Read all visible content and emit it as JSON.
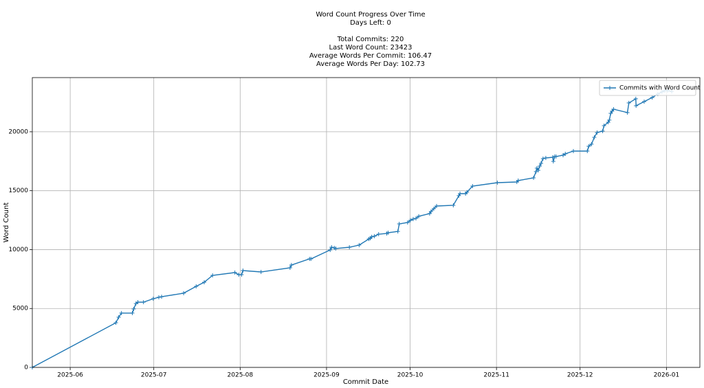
{
  "chart_data": {
    "type": "line",
    "title": [
      "Word Count Progress Over Time",
      "Days Left: 0",
      "Total Commits: 220",
      "Last Word Count: 23423",
      "Average Words Per Commit: 106.47",
      "Average Words Per Day: 102.73"
    ],
    "x_label": "Commit Date",
    "y_label": "Word Count",
    "xlim": [
      138.4,
      378
    ],
    "xticks": [
      {
        "value": 152,
        "label": "2025-06"
      },
      {
        "value": 182,
        "label": "2025-07"
      },
      {
        "value": 213,
        "label": "2025-08"
      },
      {
        "value": 244,
        "label": "2025-09"
      },
      {
        "value": 274,
        "label": "2025-10"
      },
      {
        "value": 305,
        "label": "2025-11"
      },
      {
        "value": 335,
        "label": "2025-12"
      },
      {
        "value": 366,
        "label": "2026-01"
      }
    ],
    "ylim": [
      0,
      24600
    ],
    "yticks": [
      0,
      5000,
      10000,
      15000,
      20000
    ],
    "grid": true,
    "legend": "upper right",
    "series": [
      {
        "name": "Commits with Word Count",
        "color": "#1f77b4",
        "x": [
          138.4,
          168.4,
          169.4,
          170.4,
          174.3,
          174.8,
          175.6,
          176.3,
          178.3,
          181.8,
          183.8,
          184.8,
          192.7,
          197.2,
          200.1,
          203.1,
          211.1,
          212.5,
          213.5,
          214.0,
          220.5,
          230.9,
          231.4,
          237.9,
          238.4,
          245.3,
          245.8,
          246.8,
          247.3,
          252.2,
          255.7,
          259.2,
          259.7,
          260.2,
          261.2,
          262.7,
          265.6,
          266.1,
          269.6,
          270.1,
          273.1,
          274.1,
          275.1,
          276.1,
          277.1,
          281.0,
          281.5,
          282.5,
          283.5,
          289.5,
          291.5,
          291.9,
          293.9,
          294.4,
          296.4,
          305.3,
          312.3,
          312.8,
          318.3,
          319.2,
          319.5,
          320.0,
          320.5,
          321.0,
          321.7,
          322.7,
          325.2,
          325.4,
          325.9,
          326.4,
          328.9,
          329.7,
          332.6,
          337.6,
          338.1,
          339.1,
          340.1,
          341.1,
          343.1,
          343.6,
          345.1,
          345.5,
          346.0,
          346.5,
          347.0,
          352.0,
          352.5,
          355.0,
          355.1,
          358.0,
          360.9,
          362.9,
          364.4,
          365.4,
          366.4,
          367.9
        ],
        "values": [
          0,
          3790,
          4260,
          4610,
          4610,
          4960,
          5420,
          5540,
          5540,
          5830,
          5950,
          6000,
          6300,
          6880,
          7230,
          7810,
          8050,
          7870,
          7870,
          8220,
          8100,
          8450,
          8690,
          9210,
          9210,
          9970,
          10200,
          10140,
          10090,
          10200,
          10380,
          10900,
          10960,
          11080,
          11140,
          11310,
          11370,
          11430,
          11540,
          12180,
          12300,
          12480,
          12590,
          12650,
          12830,
          13060,
          13230,
          13470,
          13700,
          13760,
          14580,
          14750,
          14750,
          14870,
          15390,
          15680,
          15740,
          15860,
          16090,
          16620,
          16910,
          16730,
          17080,
          17320,
          17720,
          17780,
          17840,
          17490,
          17900,
          17900,
          18010,
          18130,
          18360,
          18360,
          18770,
          18950,
          19530,
          19940,
          20060,
          20520,
          20810,
          20990,
          21570,
          21750,
          21920,
          21630,
          22450,
          22800,
          22210,
          22560,
          22910,
          23200,
          23380,
          23490,
          23490,
          23423
        ]
      }
    ]
  }
}
